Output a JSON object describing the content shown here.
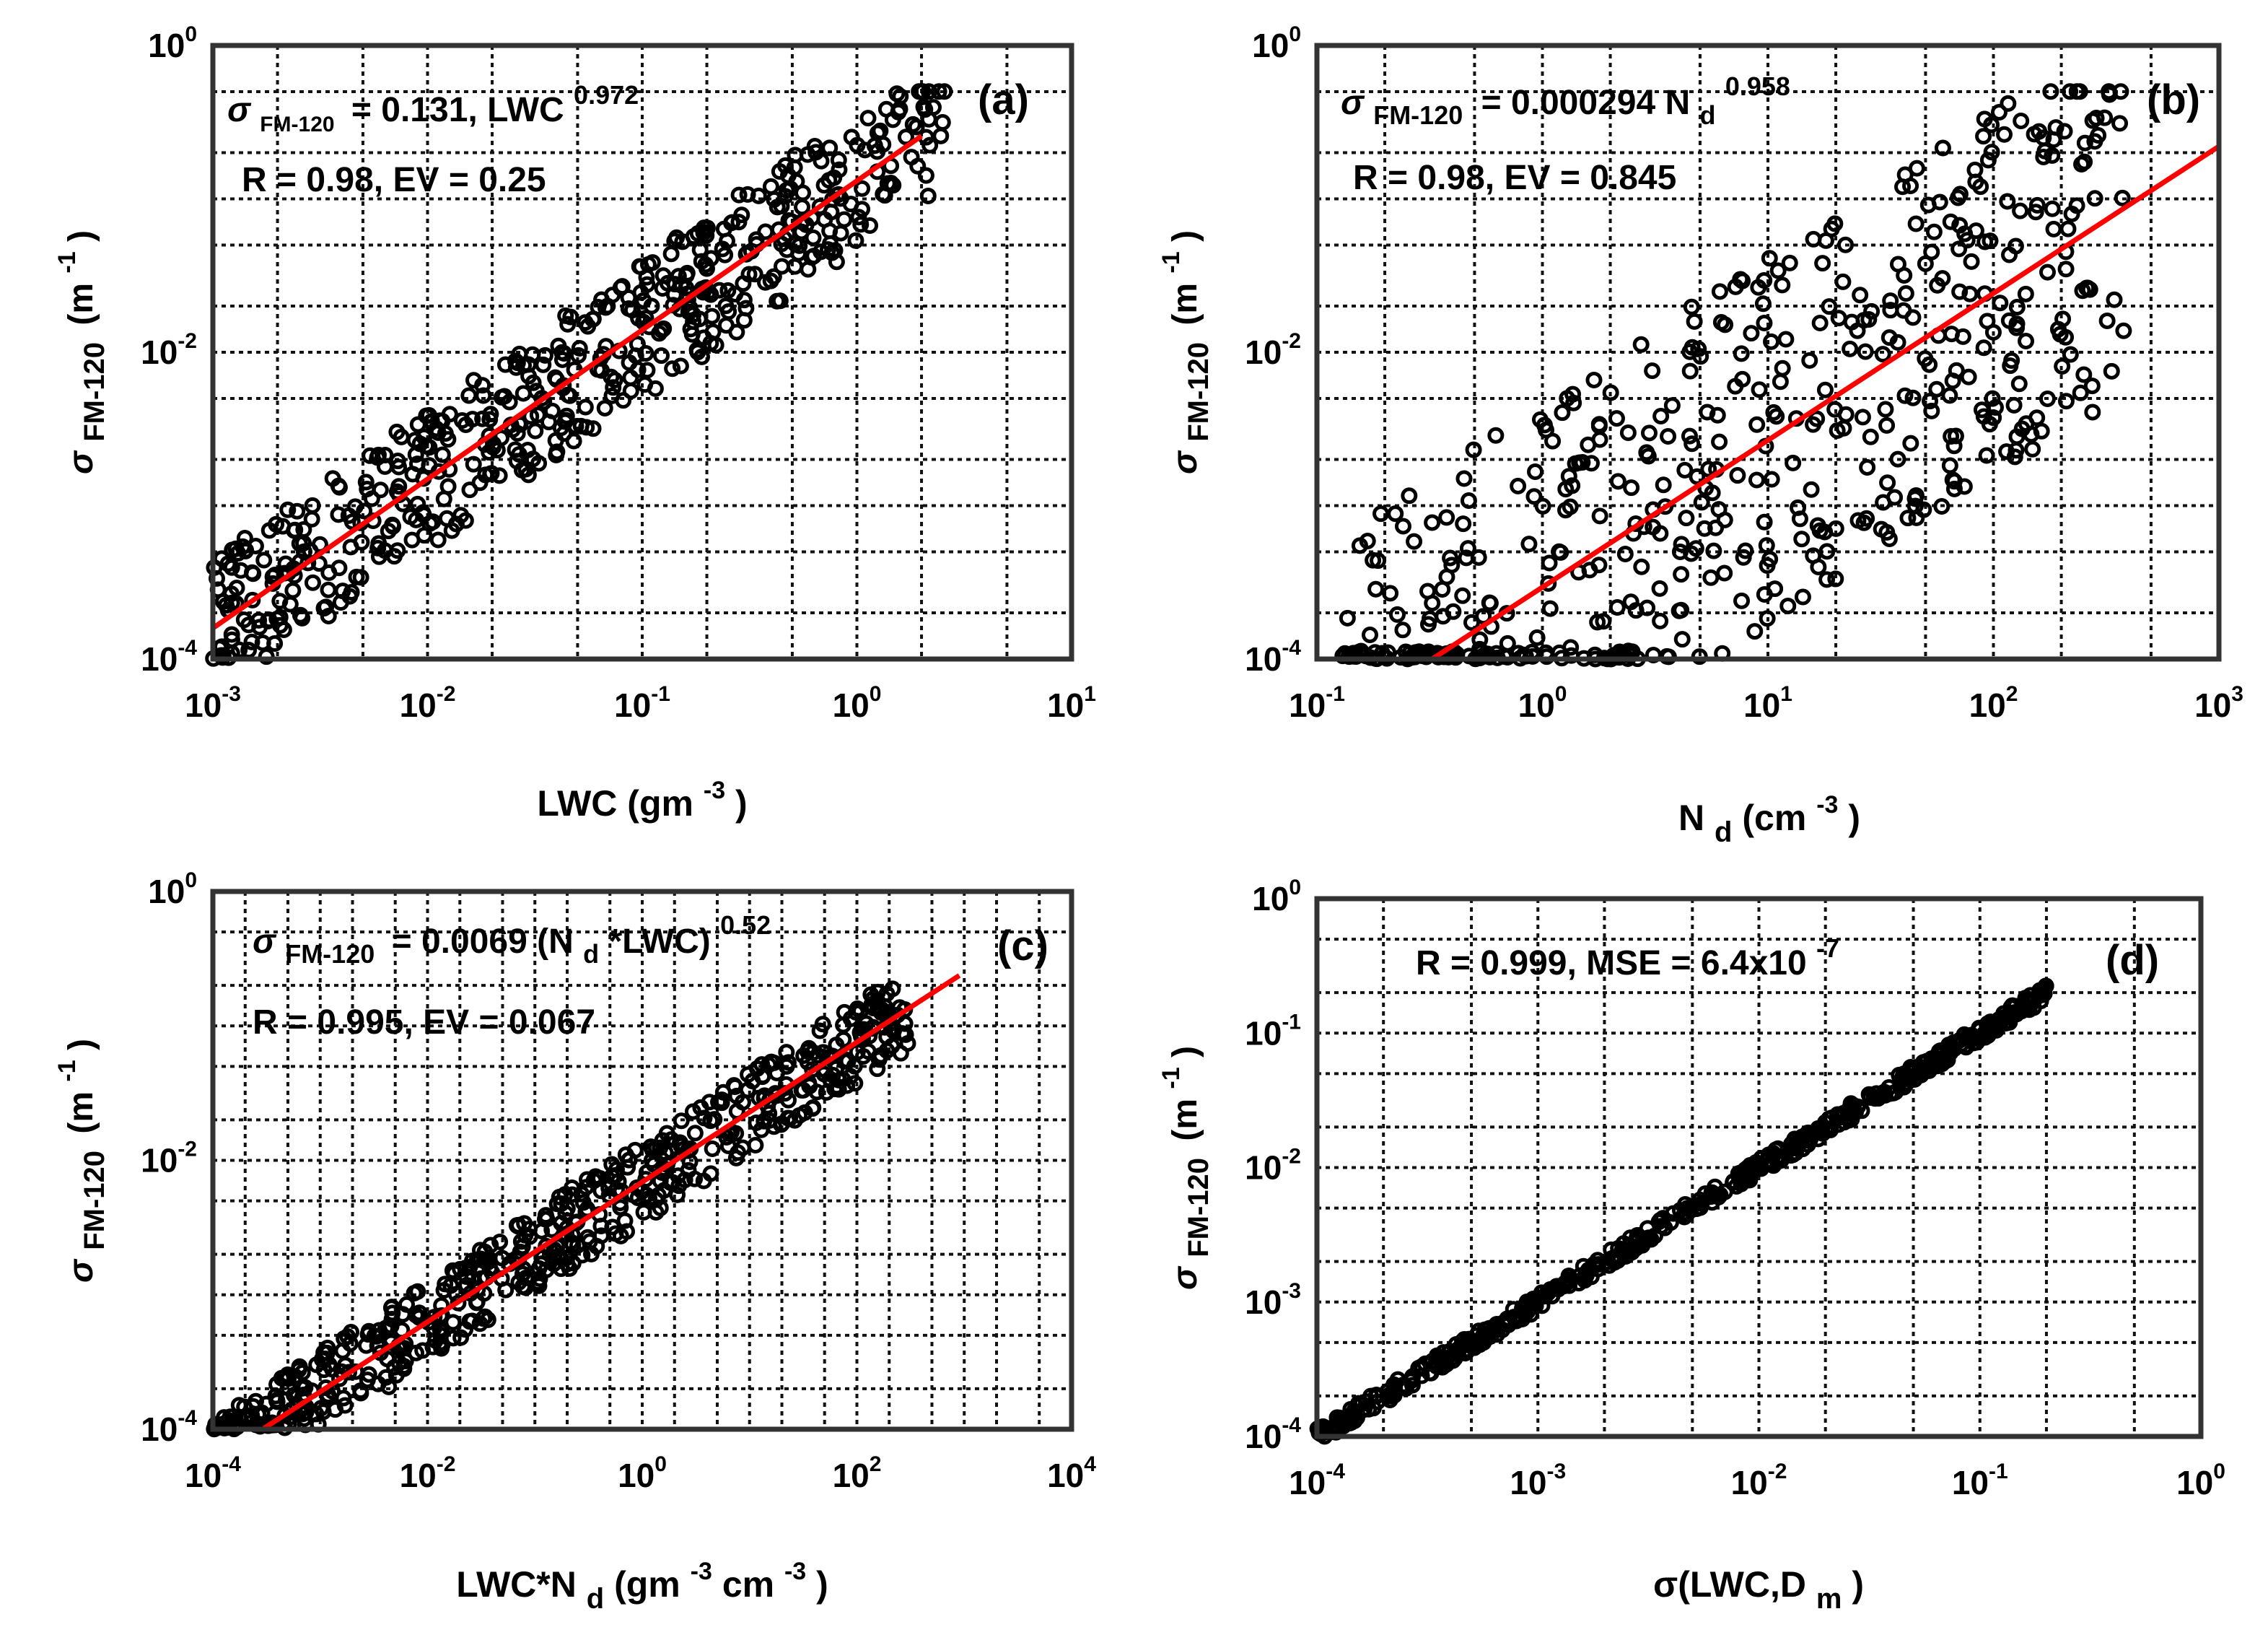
{
  "chart_data": [
    {
      "panel": "(a)",
      "type": "scatter",
      "xscale": "log",
      "yscale": "log",
      "xlim": [
        0.001,
        10
      ],
      "ylim": [
        0.0001,
        1
      ],
      "xticks": [
        0.001,
        0.01,
        0.1,
        1,
        10
      ],
      "yticks": [
        0.0001,
        0.01,
        1
      ],
      "xlabel": "LWC (gm⁻³)",
      "ylabel": "σFM-120 (m⁻¹)",
      "annotations": [
        "σFM-120 = 0.131, LWC^0.972",
        "R = 0.98, EV = 0.25"
      ],
      "fit": {
        "coef": 0.131,
        "exp": 0.972,
        "x_range": [
          0.001,
          2
        ]
      },
      "points_x_range": [
        0.001,
        2.6
      ],
      "points_spread": 0.45,
      "series": [
        {
          "name": "data",
          "marker": "o",
          "color": "#000000"
        },
        {
          "name": "fit",
          "color": "#ff0000"
        }
      ]
    },
    {
      "panel": "(b)",
      "type": "scatter",
      "xscale": "log",
      "yscale": "log",
      "xlim": [
        0.1,
        1000
      ],
      "ylim": [
        0.0001,
        1
      ],
      "xticks": [
        0.1,
        1,
        10,
        100,
        1000
      ],
      "yticks": [
        0.0001,
        0.01,
        1
      ],
      "xlabel": "Nd (cm⁻³)",
      "ylabel": "σFM-120 (m⁻¹)",
      "annotations": [
        "σFM-120 = 0.000294 Nd^0.958",
        "R = 0.98, EV = 0.845"
      ],
      "fit": {
        "coef": 0.000294,
        "exp": 0.958,
        "x_range": [
          0.32,
          1000
        ]
      },
      "points_x_range": [
        0.13,
        380
      ],
      "points_spread": 1.2,
      "series": [
        {
          "name": "data",
          "marker": "o",
          "color": "#000000"
        },
        {
          "name": "fit",
          "color": "#ff0000"
        }
      ]
    },
    {
      "panel": "(c)",
      "type": "scatter",
      "xscale": "log",
      "yscale": "log",
      "xlim": [
        0.0001,
        10000
      ],
      "ylim": [
        0.0001,
        1
      ],
      "xticks": [
        0.0001,
        0.01,
        1,
        100,
        10000
      ],
      "yticks": [
        0.0001,
        0.01,
        1
      ],
      "xlabel": "LWC*Nd (gm⁻³cm⁻³)",
      "ylabel": "σFM-120 (m⁻¹)",
      "annotations": [
        "σFM-120 = 0.0069 (Nd*LWC)^0.52",
        "R = 0.995, EV = 0.067"
      ],
      "fit": {
        "coef": 0.0069,
        "exp": 0.52,
        "x_range": [
          0.0003,
          900
        ]
      },
      "points_x_range": [
        0.0001,
        300
      ],
      "points_spread": 0.3,
      "series": [
        {
          "name": "data",
          "marker": "o",
          "color": "#000000"
        },
        {
          "name": "fit",
          "color": "#ff0000"
        }
      ]
    },
    {
      "panel": "(d)",
      "type": "scatter",
      "xscale": "log",
      "yscale": "log",
      "xlim": [
        0.0001,
        1
      ],
      "ylim": [
        0.0001,
        1
      ],
      "xticks": [
        0.0001,
        0.001,
        0.01,
        0.1,
        1
      ],
      "yticks": [
        0.0001,
        0.001,
        0.01,
        0.1,
        1
      ],
      "xlabel": "σ(LWC,Dm)",
      "ylabel": "σFM-120 (m⁻¹)",
      "annotations": [
        "R = 0.999, MSE = 6.4x10^-7"
      ],
      "fit": null,
      "points_x_range": [
        0.0001,
        0.2
      ],
      "points_spread": 0.06,
      "series": [
        {
          "name": "data",
          "marker": "o",
          "color": "#000000"
        }
      ]
    }
  ],
  "tick_labels": {
    "a": {
      "x": [
        [
          "10",
          "-3"
        ],
        [
          "10",
          "-2"
        ],
        [
          "10",
          "-1"
        ],
        [
          "10",
          "0"
        ],
        [
          "10",
          "1"
        ]
      ],
      "y": [
        [
          "10",
          "-4"
        ],
        [
          "10",
          "-2"
        ],
        [
          "10",
          "0"
        ]
      ]
    },
    "b": {
      "x": [
        [
          "10",
          "-1"
        ],
        [
          "10",
          "0"
        ],
        [
          "10",
          "1"
        ],
        [
          "10",
          "2"
        ],
        [
          "10",
          "3"
        ]
      ],
      "y": [
        [
          "10",
          "-4"
        ],
        [
          "10",
          "-2"
        ],
        [
          "10",
          "0"
        ]
      ]
    },
    "c": {
      "x": [
        [
          "10",
          "-4"
        ],
        [
          "10",
          "-2"
        ],
        [
          "10",
          "0"
        ],
        [
          "10",
          "2"
        ],
        [
          "10",
          "4"
        ]
      ],
      "y": [
        [
          "10",
          "-4"
        ],
        [
          "10",
          "-2"
        ],
        [
          "10",
          "0"
        ]
      ]
    },
    "d": {
      "x": [
        [
          "10",
          "-4"
        ],
        [
          "10",
          "-3"
        ],
        [
          "10",
          "-2"
        ],
        [
          "10",
          "-1"
        ],
        [
          "10",
          "0"
        ]
      ],
      "y": [
        [
          "10",
          "-4"
        ],
        [
          "10",
          "-3"
        ],
        [
          "10",
          "-2"
        ],
        [
          "10",
          "-1"
        ],
        [
          "10",
          "0"
        ]
      ]
    }
  },
  "text": {
    "sigma": "σ",
    "sub_fm": "FM-120",
    "sub_d": "d",
    "sub_m": "m",
    "m_unit_open": "(m",
    "sup_m1": "-1",
    "close_paren": ")",
    "sup_m3": "-3",
    "eq_a_mid": "= 0.131, LWC",
    "eq_a_exp": "0.972",
    "eq_a_stats": "R = 0.98, EV = 0.25",
    "eq_b_mid": "= 0.000294 N",
    "eq_b_exp": "0.958",
    "eq_b_stats": "R = 0.98, EV = 0.845",
    "eq_c_mid": "= 0.0069 (N",
    "eq_c_after": "*LWC)",
    "eq_c_exp": "0.52",
    "eq_c_stats": "R = 0.995, EV = 0.067",
    "eq_d_stats": "R = 0.999, MSE = 6.4x10",
    "eq_d_exp": "-7",
    "xl_a_1": "LWC (gm",
    "xl_b_1": "N",
    "xl_b_2": " (cm",
    "xl_c_1": "LWC*N",
    "xl_c_2": " (gm",
    "xl_c_3": "cm",
    "xl_d_1": "σ(LWC,D",
    "xl_d_2": ")",
    "panel_a": "(a)",
    "panel_b": "(b)",
    "panel_c": "(c)",
    "panel_d": "(d)"
  }
}
